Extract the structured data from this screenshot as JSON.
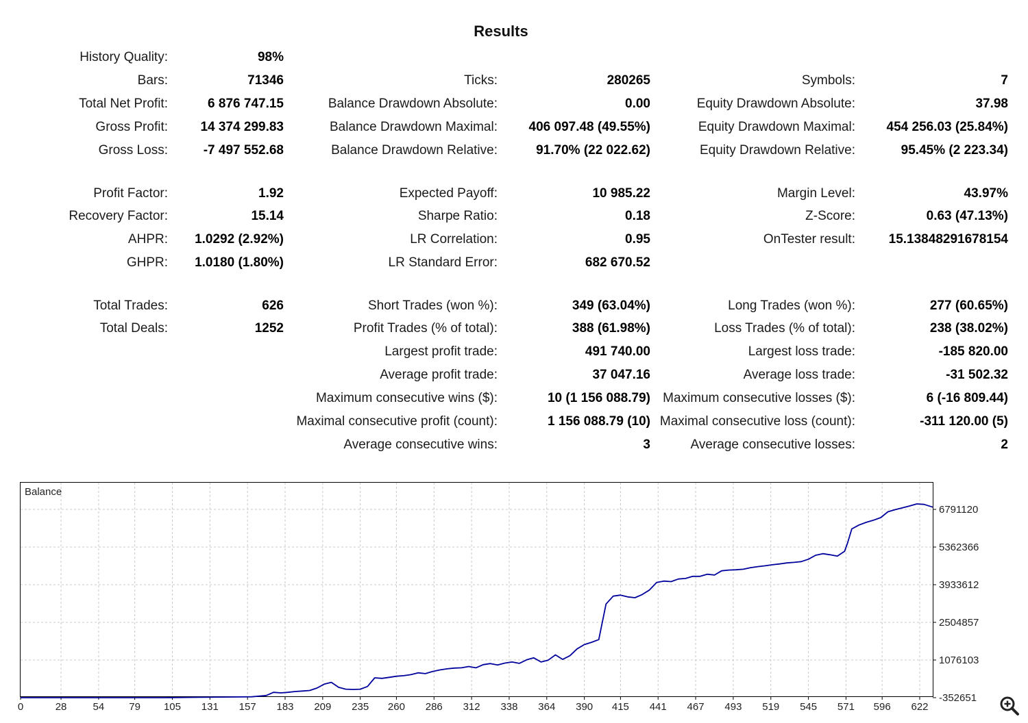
{
  "title": "Results",
  "rows": [
    {
      "cells": [
        {
          "label": "History Quality:",
          "value": "98%"
        },
        null,
        null
      ]
    },
    {
      "cells": [
        {
          "label": "Bars:",
          "value": "71346"
        },
        {
          "label": "Ticks:",
          "value": "280265"
        },
        {
          "label": "Symbols:",
          "value": "7"
        }
      ]
    },
    {
      "cells": [
        {
          "label": "Total Net Profit:",
          "value": "6 876 747.15"
        },
        {
          "label": "Balance Drawdown Absolute:",
          "value": "0.00"
        },
        {
          "label": "Equity Drawdown Absolute:",
          "value": "37.98"
        }
      ]
    },
    {
      "cells": [
        {
          "label": "Gross Profit:",
          "value": "14 374 299.83"
        },
        {
          "label": "Balance Drawdown Maximal:",
          "value": "406 097.48 (49.55%)"
        },
        {
          "label": "Equity Drawdown Maximal:",
          "value": "454 256.03 (25.84%)"
        }
      ]
    },
    {
      "cells": [
        {
          "label": "Gross Loss:",
          "value": "-7 497 552.68"
        },
        {
          "label": "Balance Drawdown Relative:",
          "value": "91.70% (22 022.62)"
        },
        {
          "label": "Equity Drawdown Relative:",
          "value": "95.45% (2 223.34)"
        }
      ]
    },
    {
      "cells": [
        {
          "label": "Profit Factor:",
          "value": "1.92"
        },
        {
          "label": "Expected Payoff:",
          "value": "10 985.22"
        },
        {
          "label": "Margin Level:",
          "value": "43.97%"
        }
      ]
    },
    {
      "cells": [
        {
          "label": "Recovery Factor:",
          "value": "15.14"
        },
        {
          "label": "Sharpe Ratio:",
          "value": "0.18"
        },
        {
          "label": "Z-Score:",
          "value": "0.63 (47.13%)"
        }
      ]
    },
    {
      "cells": [
        {
          "label": "AHPR:",
          "value": "1.0292 (2.92%)"
        },
        {
          "label": "LR Correlation:",
          "value": "0.95"
        },
        {
          "label": "OnTester result:",
          "value": "15.13848291678154"
        }
      ]
    },
    {
      "cells": [
        {
          "label": "GHPR:",
          "value": "1.0180 (1.80%)"
        },
        {
          "label": "LR Standard Error:",
          "value": "682 670.52"
        },
        null
      ]
    },
    {
      "cells": [
        {
          "label": "Total Trades:",
          "value": "626"
        },
        {
          "label": "Short Trades (won %):",
          "value": "349 (63.04%)"
        },
        {
          "label": "Long Trades (won %):",
          "value": "277 (60.65%)"
        }
      ]
    },
    {
      "cells": [
        {
          "label": "Total Deals:",
          "value": "1252"
        },
        {
          "label": "Profit Trades (% of total):",
          "value": "388 (61.98%)"
        },
        {
          "label": "Loss Trades (% of total):",
          "value": "238 (38.02%)"
        }
      ]
    },
    {
      "cells": [
        null,
        {
          "label": "Largest profit trade:",
          "value": "491 740.00"
        },
        {
          "label": "Largest loss trade:",
          "value": "-185 820.00"
        }
      ]
    },
    {
      "cells": [
        null,
        {
          "label": "Average profit trade:",
          "value": "37 047.16"
        },
        {
          "label": "Average loss trade:",
          "value": "-31 502.32"
        }
      ]
    },
    {
      "cells": [
        null,
        {
          "label": "Maximum consecutive wins ($):",
          "value": "10 (1 156 088.79)"
        },
        {
          "label": "Maximum consecutive losses ($):",
          "value": "6 (-16 809.44)"
        }
      ]
    },
    {
      "cells": [
        null,
        {
          "label": "Maximal consecutive profit (count):",
          "value": "1 156 088.79 (10)"
        },
        {
          "label": "Maximal consecutive loss (count):",
          "value": "-311 120.00 (5)"
        }
      ]
    },
    {
      "cells": [
        null,
        {
          "label": "Average consecutive wins:",
          "value": "3"
        },
        {
          "label": "Average consecutive losses:",
          "value": "2"
        }
      ]
    }
  ],
  "chart_data": {
    "type": "line",
    "legend": "Balance",
    "line_color": "#00009c",
    "grid": true,
    "x_ticks": [
      "0",
      "28",
      "54",
      "79",
      "105",
      "131",
      "157",
      "183",
      "209",
      "235",
      "260",
      "286",
      "312",
      "338",
      "364",
      "390",
      "415",
      "441",
      "467",
      "493",
      "519",
      "545",
      "571",
      "596",
      "622"
    ],
    "y_ticks": [
      "6791120",
      "5362366",
      "3933612",
      "2504857",
      "1076103",
      "-352651"
    ],
    "xlim": [
      0,
      631
    ],
    "ylim": [
      -352651,
      7400000
    ],
    "series": [
      {
        "name": "Balance",
        "x": [
          0,
          20,
          40,
          60,
          80,
          100,
          120,
          140,
          160,
          170,
          175,
          180,
          185,
          190,
          195,
          200,
          205,
          210,
          215,
          220,
          225,
          230,
          235,
          240,
          245,
          250,
          255,
          260,
          265,
          270,
          275,
          280,
          285,
          290,
          295,
          300,
          305,
          310,
          315,
          320,
          325,
          330,
          335,
          340,
          345,
          350,
          355,
          360,
          365,
          370,
          375,
          380,
          385,
          390,
          395,
          400,
          405,
          410,
          415,
          420,
          425,
          430,
          435,
          440,
          445,
          450,
          455,
          460,
          465,
          470,
          475,
          480,
          485,
          490,
          495,
          500,
          505,
          510,
          515,
          520,
          525,
          530,
          535,
          540,
          545,
          550,
          555,
          560,
          565,
          570,
          572,
          575,
          580,
          585,
          590,
          595,
          600,
          605,
          610,
          615,
          620,
          625,
          631
        ],
        "y": [
          -352651,
          -352651,
          -352651,
          -352651,
          -352651,
          -352651,
          -340000,
          -330000,
          -320000,
          -270000,
          -150000,
          -170000,
          -150000,
          -120000,
          -100000,
          -80000,
          10000,
          160000,
          230000,
          40000,
          -30000,
          -40000,
          -30000,
          70000,
          400000,
          380000,
          420000,
          460000,
          480000,
          520000,
          590000,
          560000,
          640000,
          700000,
          740000,
          770000,
          780000,
          830000,
          780000,
          900000,
          940000,
          890000,
          960000,
          1000000,
          950000,
          1080000,
          1160000,
          1000000,
          1070000,
          1270000,
          1100000,
          1240000,
          1500000,
          1660000,
          1750000,
          1850000,
          3200000,
          3500000,
          3540000,
          3470000,
          3440000,
          3560000,
          3730000,
          4020000,
          4070000,
          4050000,
          4150000,
          4170000,
          4250000,
          4250000,
          4330000,
          4300000,
          4460000,
          4490000,
          4500000,
          4520000,
          4580000,
          4620000,
          4650000,
          4690000,
          4720000,
          4760000,
          4780000,
          4810000,
          4900000,
          5050000,
          5110000,
          5070000,
          5020000,
          5200000,
          5500000,
          6050000,
          6200000,
          6300000,
          6380000,
          6480000,
          6700000,
          6780000,
          6850000,
          6920000,
          7000000,
          6980000,
          6876747
        ]
      }
    ]
  }
}
